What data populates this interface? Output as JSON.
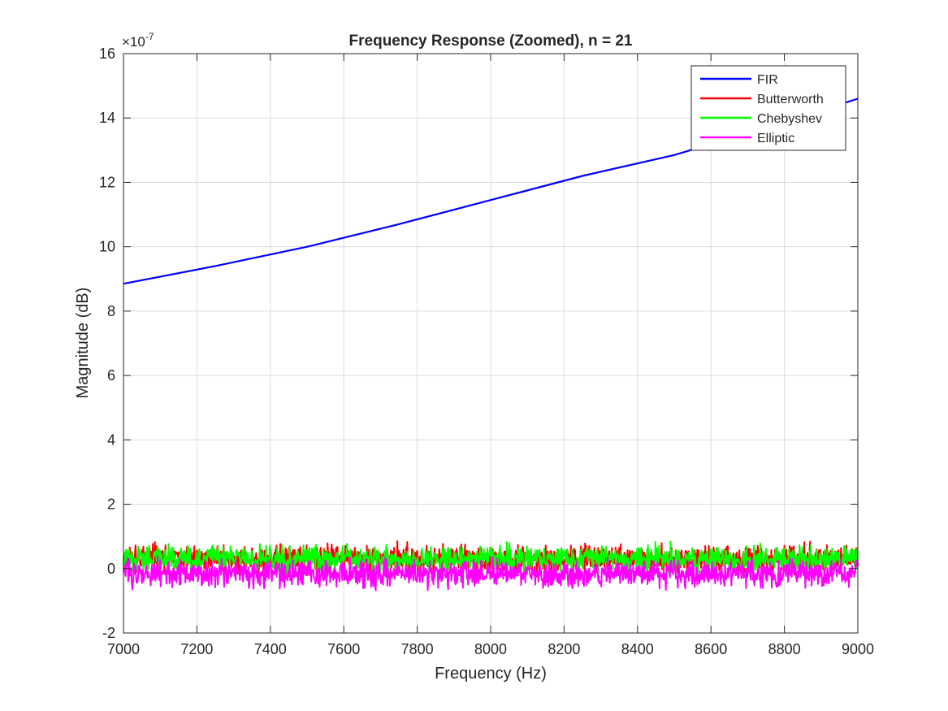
{
  "chart_data": {
    "type": "line",
    "title": "Frequency Response (Zoomed), n = 21",
    "xlabel": "Frequency (Hz)",
    "ylabel": "Magnitude (dB)",
    "xlim": [
      7000,
      9000
    ],
    "ylim": [
      -2,
      16
    ],
    "y_scale_exponent": -7,
    "y_exponent_base": "×10",
    "y_exponent_power": "-7",
    "xticks": [
      7000,
      7200,
      7400,
      7600,
      7800,
      8000,
      8200,
      8400,
      8600,
      8800,
      9000
    ],
    "xtick_labels": [
      "7000",
      "7200",
      "7400",
      "7600",
      "7800",
      "8000",
      "8200",
      "8400",
      "8600",
      "8800",
      "9000"
    ],
    "yticks": [
      -2,
      0,
      2,
      4,
      6,
      8,
      10,
      12,
      14,
      16
    ],
    "ytick_labels": [
      "-2",
      "0",
      "2",
      "4",
      "6",
      "8",
      "10",
      "12",
      "14",
      "16"
    ],
    "grid": true,
    "legend_location": "top-right",
    "series": [
      {
        "name": "FIR",
        "color": "#0000ff",
        "x": [
          7000,
          7250,
          7500,
          7750,
          8000,
          8250,
          8500,
          8750,
          9000
        ],
        "y": [
          8.85,
          9.4,
          10.0,
          10.7,
          11.45,
          12.2,
          12.85,
          13.7,
          14.6
        ]
      },
      {
        "name": "Butterworth",
        "color": "#ff0000",
        "x": [
          7000,
          9000
        ],
        "y": [
          0.3,
          0.3
        ],
        "noise_amplitude": 0.3
      },
      {
        "name": "Chebyshev",
        "color": "#00ff00",
        "x": [
          7000,
          9000
        ],
        "y": [
          0.3,
          0.3
        ],
        "noise_amplitude": 0.3
      },
      {
        "name": "Elliptic",
        "color": "#ff00ff",
        "x": [
          7000,
          9000
        ],
        "y": [
          -0.15,
          -0.15
        ],
        "noise_amplitude": 0.3
      }
    ]
  }
}
